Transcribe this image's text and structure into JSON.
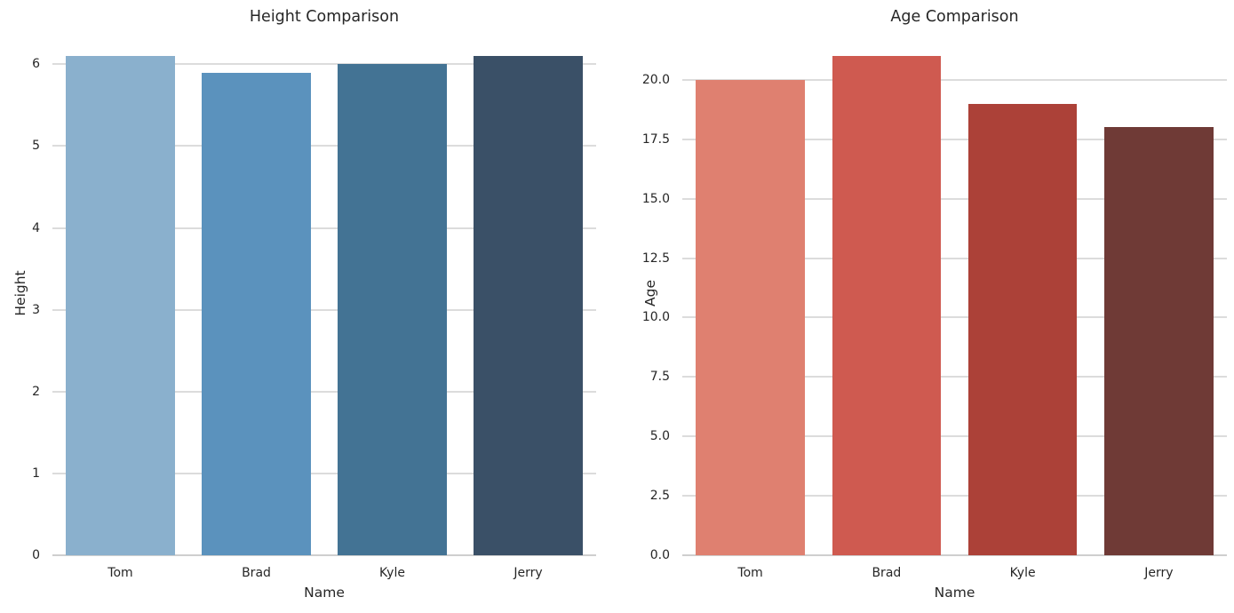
{
  "figure": {
    "background": "#ffffff",
    "text_color": "#262626",
    "grid_color": "#dcdcdc",
    "axis_line_color": "#cfcfcf"
  },
  "chart_data": [
    {
      "type": "bar",
      "title": "Height Comparison",
      "xlabel": "Name",
      "ylabel": "Height",
      "categories": [
        "Tom",
        "Brad",
        "Kyle",
        "Jerry"
      ],
      "values": [
        6.1,
        5.9,
        6.0,
        6.1
      ],
      "bar_colors": [
        "#8AB0CD",
        "#5B92BD",
        "#437394",
        "#3A5067"
      ],
      "yticks": [
        0,
        1,
        2,
        3,
        4,
        5,
        6
      ],
      "ytick_labels": [
        "0",
        "1",
        "2",
        "3",
        "4",
        "5",
        "6"
      ],
      "ylim": [
        0,
        6.405
      ],
      "grid": true,
      "legend": "none"
    },
    {
      "type": "bar",
      "title": "Age Comparison",
      "xlabel": "Name",
      "ylabel": "Age",
      "categories": [
        "Tom",
        "Brad",
        "Kyle",
        "Jerry"
      ],
      "values": [
        20,
        21,
        19,
        18
      ],
      "bar_colors": [
        "#DF8070",
        "#CF5A50",
        "#AC4138",
        "#6F3A36"
      ],
      "yticks": [
        0,
        2.5,
        5,
        7.5,
        10,
        12.5,
        15,
        17.5,
        20
      ],
      "ytick_labels": [
        "0.0",
        "2.5",
        "5.0",
        "7.5",
        "10.0",
        "12.5",
        "15.0",
        "17.5",
        "20.0"
      ],
      "ylim": [
        0,
        22.05
      ],
      "grid": true,
      "legend": "none"
    }
  ]
}
